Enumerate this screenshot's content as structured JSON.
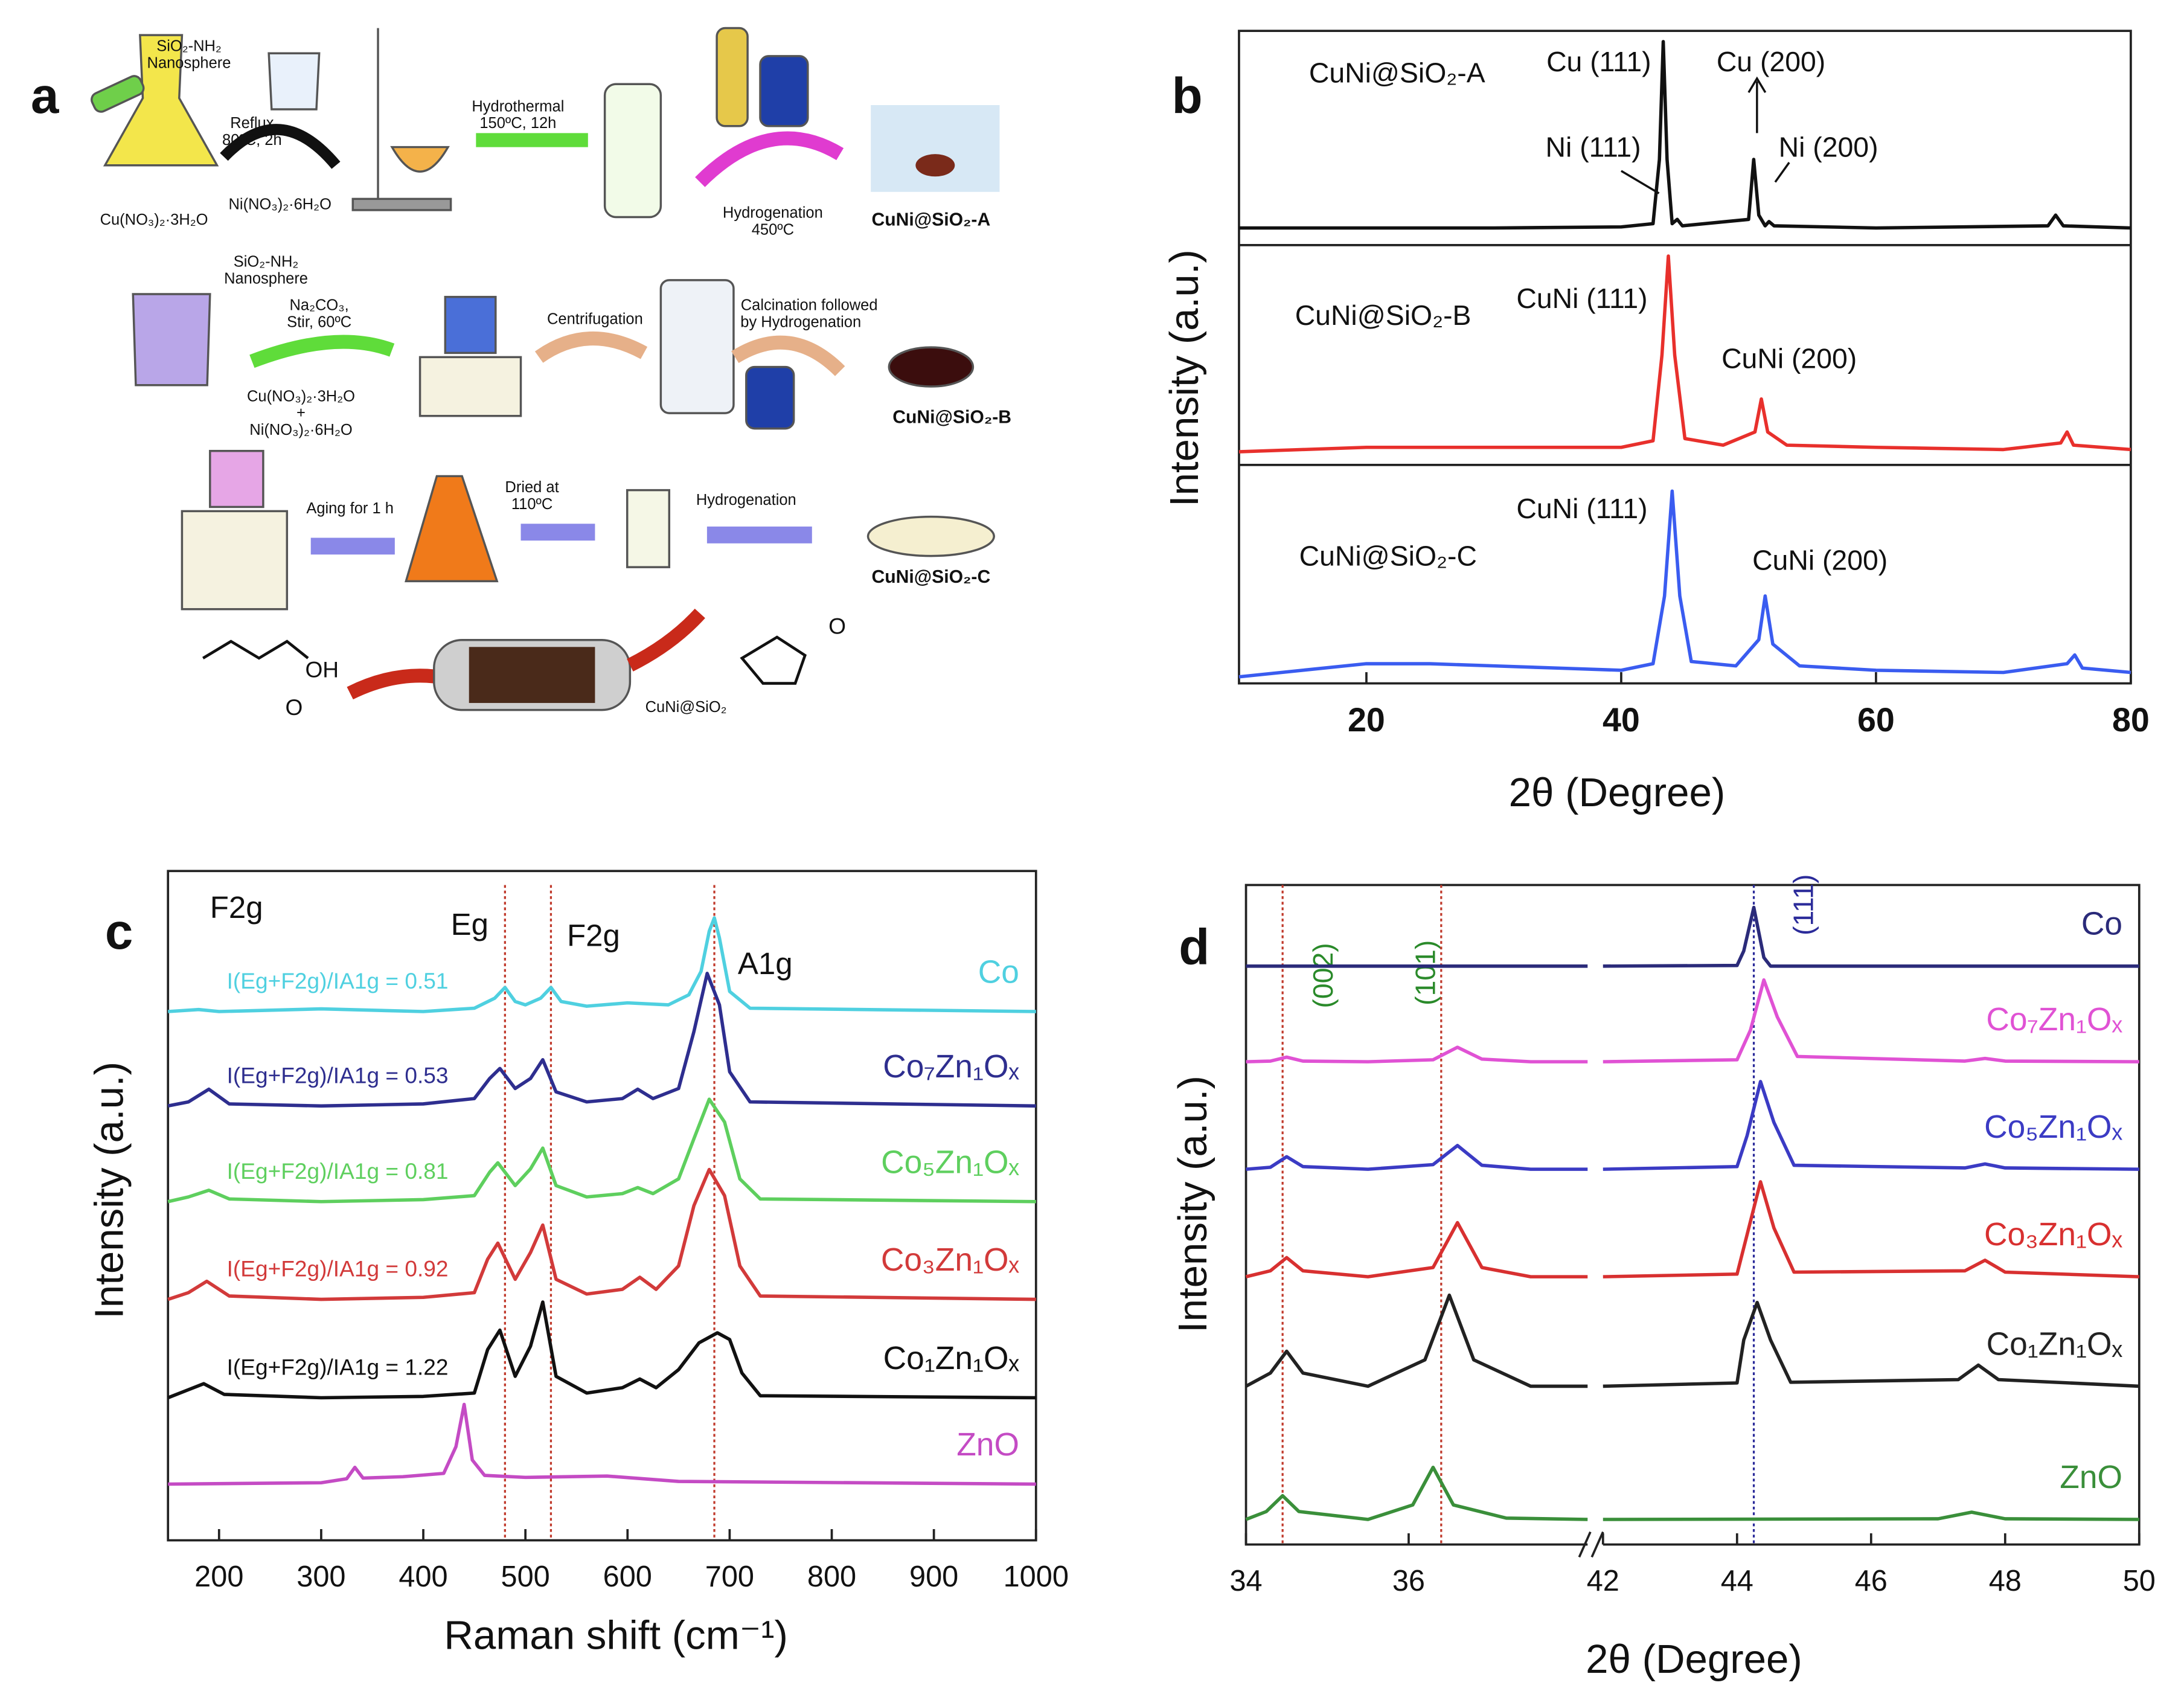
{
  "schematic": {
    "panel": "a",
    "labels": [
      "SiO₂-NH₂",
      "Nanosphere",
      "Reflux",
      "80ºC, 2h",
      "Cu(NO₃)₂·3H₂O",
      "Ni(NO₃)₂·6H₂O",
      "Hydrothermal",
      "150ºC, 12h",
      "Hydrogenation",
      "450ºC",
      "CuNi@SiO₂-A",
      "SiO₂-NH₂",
      "Nanosphere",
      "Na₂CO₃,",
      "Stir, 60ºC",
      "Centrifugation",
      "Calcination followed",
      "by Hydrogenation",
      "Cu(NO₃)₂·3H₂O",
      "+",
      "Ni(NO₃)₂·6H₂O",
      "CuNi@SiO₂-B",
      "Aging for 1 h",
      "Dried at",
      "110ºC",
      "Hydrogenation",
      "CuNi@SiO₂-C",
      "CuNi@SiO₂",
      "OH",
      "O",
      "O"
    ]
  },
  "chart_data": [
    {
      "type": "line",
      "panel": "b",
      "xlim": [
        10,
        80
      ],
      "ylim": [
        0,
        100
      ],
      "annotations": [
        "Cu (111)",
        "Cu (200)",
        "Ni (111)",
        "Ni (200)"
      ],
      "series": [
        {
          "name": "CuNi@SiO₂-A",
          "color": "#111111",
          "x": [
            10,
            20,
            30,
            40,
            42.5,
            43.0,
            43.3,
            43.6,
            44.0,
            44.4,
            44.8,
            50.0,
            50.4,
            50.8,
            51.3,
            51.6,
            52,
            60,
            73.5,
            74.1,
            74.7,
            80
          ],
          "values": [
            8,
            8,
            8,
            8.5,
            10,
            40,
            95,
            40,
            10,
            12,
            9,
            12,
            40,
            14,
            9,
            11,
            9,
            8,
            9,
            14,
            9,
            8
          ]
        }
      ]
    },
    {
      "type": "line",
      "y_label": "Intensity (a.u.)",
      "xlim": [
        10,
        80
      ],
      "ylim": [
        0,
        100
      ],
      "annotations": [
        "CuNi (111)",
        "CuNi (200)"
      ],
      "series": [
        {
          "name": "CuNi@SiO₂-B",
          "color": "#e8302c",
          "x": [
            10,
            15,
            20,
            25,
            30,
            35,
            40,
            42.5,
            43.2,
            43.7,
            44.2,
            45,
            48,
            50.5,
            51,
            51.5,
            53,
            60,
            70,
            74.5,
            75,
            75.5,
            80
          ],
          "values": [
            6,
            7,
            8,
            8,
            8,
            8,
            8,
            11,
            50,
            95,
            50,
            12,
            9,
            15,
            30,
            15,
            9,
            8,
            7,
            10,
            15,
            9,
            7
          ]
        }
      ]
    },
    {
      "type": "line",
      "x_label": "2θ (Degree)",
      "xlim": [
        10,
        80
      ],
      "ylim": [
        0,
        100
      ],
      "xticks": [
        20,
        40,
        60,
        80
      ],
      "annotations": [
        "CuNi (111)",
        "CuNi (200)"
      ],
      "series": [
        {
          "name": "CuNi@SiO₂-C",
          "color": "#3a5cf0",
          "x": [
            10,
            15,
            20,
            25,
            30,
            35,
            40,
            42.5,
            43.4,
            44.0,
            44.6,
            45.5,
            49,
            50.8,
            51.3,
            51.9,
            54,
            60,
            70,
            75,
            75.6,
            76.2,
            80
          ],
          "values": [
            3,
            6,
            9,
            9,
            8,
            7,
            6,
            9,
            40,
            88,
            40,
            10,
            8,
            20,
            40,
            18,
            8,
            6,
            5,
            9,
            13,
            7,
            5
          ]
        }
      ]
    },
    {
      "type": "line",
      "panel": "c",
      "x_label": "Raman shift (cm⁻¹)",
      "y_label": "Intensity (a.u.)",
      "xlim": [
        150,
        1000
      ],
      "ylim": [
        0,
        100
      ],
      "xticks": [
        200,
        300,
        400,
        500,
        600,
        700,
        800,
        900,
        1000
      ],
      "legend": "inline-right",
      "vlines": [
        480,
        525,
        685
      ],
      "vline_color": "#c0392b",
      "annotations": [
        "F2g",
        "Eg",
        "F2g",
        "A1g"
      ],
      "ratio_labels": [
        "I(Eg+F2g)/IA1g = 0.51",
        "I(Eg+F2g)/IA1g = 0.53",
        "I(Eg+F2g)/IA1g = 0.81",
        "I(Eg+F2g)/IA1g = 0.92",
        "I(Eg+F2g)/IA1g = 1.22"
      ],
      "series": [
        {
          "name": "Co",
          "color": "#4fd0e0",
          "x": [
            150,
            180,
            200,
            300,
            400,
            450,
            470,
            480,
            490,
            500,
            515,
            525,
            535,
            560,
            600,
            640,
            660,
            672,
            680,
            685,
            690,
            700,
            720,
            1000
          ],
          "values": [
            79,
            79.3,
            79,
            79.4,
            79,
            79.5,
            81,
            82.6,
            80.5,
            80,
            81,
            82.6,
            80.5,
            79.8,
            80.3,
            80,
            81.5,
            85,
            91,
            93,
            90,
            82,
            79.5,
            79
          ]
        },
        {
          "name": "Co₇Zn₁Oₓ",
          "color": "#2e2e8f",
          "x": [
            150,
            170,
            190,
            210,
            300,
            400,
            450,
            465,
            475,
            490,
            505,
            517,
            530,
            560,
            595,
            610,
            625,
            650,
            665,
            678,
            690,
            700,
            720,
            1000
          ],
          "values": [
            64.9,
            65.5,
            67.4,
            65.2,
            64.9,
            65.2,
            66,
            69,
            70.5,
            67.5,
            69,
            71.8,
            67,
            65.5,
            66,
            67.4,
            66,
            67.5,
            76,
            84.7,
            80,
            70,
            65.5,
            64.9
          ]
        },
        {
          "name": "Co₅Zn₁Oₓ",
          "color": "#5ecf5e",
          "x": [
            150,
            170,
            190,
            210,
            300,
            400,
            450,
            465,
            473,
            490,
            505,
            517,
            530,
            560,
            595,
            610,
            625,
            650,
            665,
            680,
            695,
            710,
            730,
            1000
          ],
          "values": [
            50.6,
            51.3,
            52.3,
            51,
            50.6,
            50.9,
            51.5,
            55,
            56.4,
            53,
            55.5,
            58.6,
            53,
            51.3,
            51.8,
            52.7,
            51.8,
            54,
            60,
            65.9,
            62.5,
            54,
            51,
            50.6
          ]
        },
        {
          "name": "Co₃Zn₁Oₓ",
          "color": "#d23a3a",
          "x": [
            150,
            170,
            188,
            210,
            300,
            400,
            450,
            463,
            473,
            490,
            505,
            517,
            530,
            560,
            595,
            612,
            628,
            650,
            665,
            680,
            695,
            710,
            730,
            1000
          ],
          "values": [
            36,
            37,
            38.7,
            36.5,
            36,
            36.3,
            37,
            42,
            44.4,
            39,
            43,
            47.1,
            39,
            36.8,
            37.5,
            39.3,
            37.5,
            41,
            50,
            55.4,
            51.5,
            41,
            36.5,
            36
          ]
        },
        {
          "name": "Co₁Zn₁Oₓ",
          "color": "#111111",
          "x": [
            150,
            170,
            185,
            205,
            300,
            400,
            450,
            463,
            475,
            490,
            505,
            517,
            530,
            560,
            595,
            612,
            628,
            650,
            670,
            688,
            700,
            712,
            730,
            1000
          ],
          "values": [
            21.3,
            22.5,
            23.4,
            21.8,
            21.3,
            21.5,
            22,
            28.5,
            31.4,
            24.5,
            29,
            35.6,
            24.5,
            22,
            22.8,
            24.1,
            22.8,
            25.5,
            29.5,
            31,
            30,
            25,
            21.6,
            21.3
          ]
        },
        {
          "name": "ZnO",
          "color": "#c44bc4",
          "x": [
            150,
            300,
            325,
            333,
            341,
            380,
            420,
            432,
            440,
            448,
            460,
            500,
            580,
            650,
            1000
          ],
          "values": [
            8.4,
            8.6,
            9.2,
            10.9,
            9.3,
            9.5,
            10,
            14,
            20.3,
            12,
            9.7,
            9.4,
            9.6,
            8.8,
            8.4
          ]
        }
      ]
    },
    {
      "type": "line",
      "panel": "d",
      "y_label": "Intensity (a.u.)",
      "xlim": [
        34,
        38.2
      ],
      "ylim": [
        0,
        100
      ],
      "xticks": [
        34,
        36
      ],
      "vlines": [
        34.45,
        36.4
      ],
      "vline_color": "#c0392b",
      "annotations": [
        "(002)",
        "(101)"
      ],
      "series": [
        {
          "color": "#2b2b7a",
          "x": [
            34,
            38.2
          ],
          "values": [
            87.7,
            87.7
          ]
        },
        {
          "color": "#e052d4",
          "x": [
            34,
            34.3,
            34.5,
            34.7,
            35.5,
            36.3,
            36.6,
            36.9,
            37.5,
            38.2
          ],
          "values": [
            73.2,
            73.3,
            73.9,
            73.3,
            73.2,
            73.5,
            75.4,
            73.6,
            73.2,
            73.2
          ]
        },
        {
          "color": "#3b3bc4",
          "x": [
            34,
            34.3,
            34.5,
            34.7,
            35.5,
            36.3,
            36.6,
            36.9,
            37.5,
            38.2
          ],
          "values": [
            56.9,
            57.2,
            58.8,
            57.3,
            56.9,
            57.6,
            60.5,
            57.5,
            56.9,
            56.9
          ]
        },
        {
          "color": "#d83030",
          "x": [
            34,
            34.3,
            34.5,
            34.7,
            35.5,
            36.3,
            36.6,
            36.9,
            37.5,
            38.2
          ],
          "values": [
            40.6,
            41.5,
            43.5,
            41.5,
            40.6,
            42,
            48.8,
            42,
            40.6,
            40.6
          ]
        },
        {
          "color": "#222222",
          "x": [
            34,
            34.3,
            34.5,
            34.7,
            35.5,
            36.2,
            36.5,
            36.8,
            37.5,
            38.2
          ],
          "values": [
            24,
            26,
            29.3,
            26,
            24,
            28,
            37.8,
            28,
            24,
            24
          ]
        },
        {
          "color": "#3a8f3a",
          "x": [
            34,
            34.25,
            34.45,
            34.65,
            35.5,
            36.05,
            36.3,
            36.55,
            37.2,
            38.2
          ],
          "values": [
            3.8,
            5,
            7.4,
            5,
            3.8,
            6,
            11.7,
            6,
            4,
            3.8
          ]
        }
      ]
    },
    {
      "type": "line",
      "x_label": "2θ (Degree)",
      "xlim": [
        42,
        50
      ],
      "ylim": [
        0,
        100
      ],
      "xticks": [
        42,
        44,
        46,
        48,
        50
      ],
      "legend": "inline-right",
      "vlines": [
        44.25
      ],
      "vline_color": "#2b2b9a",
      "annotations": [
        "(111)"
      ],
      "series": [
        {
          "name": "Co",
          "color": "#2b2b7a",
          "x": [
            42,
            44,
            44.1,
            44.25,
            44.4,
            44.5,
            46,
            50
          ],
          "values": [
            87.7,
            87.8,
            90,
            96.6,
            89,
            87.7,
            87.7,
            87.7
          ]
        },
        {
          "name": "Co₇Zn₁Oₓ",
          "color": "#e052d4",
          "x": [
            42,
            44,
            44.2,
            44.4,
            44.6,
            44.9,
            47.4,
            47.7,
            48,
            50
          ],
          "values": [
            73.2,
            73.5,
            78,
            85.6,
            80,
            74,
            73.3,
            73.7,
            73.3,
            73.2
          ]
        },
        {
          "name": "Co₅Zn₁Oₓ",
          "color": "#3b3bc4",
          "x": [
            42,
            44,
            44.15,
            44.35,
            44.55,
            44.85,
            47.4,
            47.7,
            48,
            50
          ],
          "values": [
            56.9,
            57.3,
            62,
            70.2,
            64,
            57.5,
            57.1,
            57.7,
            57.1,
            56.9
          ]
        },
        {
          "name": "Co₃Zn₁Oₓ",
          "color": "#d83030",
          "x": [
            42,
            44,
            44.15,
            44.35,
            44.55,
            44.85,
            47.4,
            47.7,
            48,
            50
          ],
          "values": [
            40.6,
            41,
            47,
            55,
            48,
            41.3,
            41.5,
            43.1,
            41.3,
            40.6
          ]
        },
        {
          "name": "Co₁Zn₁Oₓ",
          "color": "#222222",
          "x": [
            42,
            44,
            44.1,
            44.3,
            44.5,
            44.8,
            47.3,
            47.6,
            47.9,
            50
          ],
          "values": [
            24,
            24.5,
            31,
            36.7,
            31,
            24.6,
            25,
            27.2,
            25,
            24
          ]
        },
        {
          "name": "ZnO",
          "color": "#3a8f3a",
          "x": [
            42,
            47,
            47.5,
            48,
            50
          ],
          "values": [
            3.8,
            3.9,
            4.9,
            3.9,
            3.8
          ]
        }
      ]
    }
  ]
}
